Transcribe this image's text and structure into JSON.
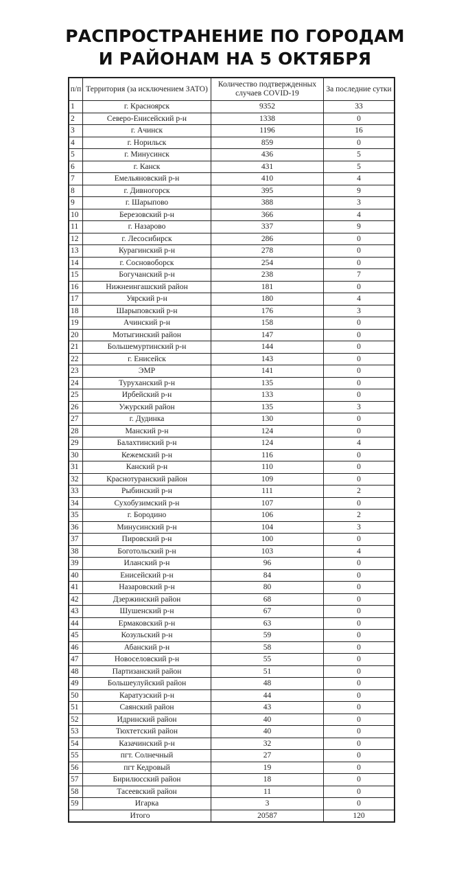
{
  "title": {
    "line1": "РАСПРОСТРАНЕНИЕ ПО ГОРОДАМ",
    "line2": "И РАЙОНАМ НА 5 ОКТЯБРЯ"
  },
  "table": {
    "headers": [
      "п/п",
      "Территория (за исключением ЗАТО)",
      "Количество подтвержденных случаев COVID-19",
      "За последние сутки"
    ],
    "rows": [
      [
        "1",
        "г. Красноярск",
        "9352",
        "33"
      ],
      [
        "2",
        "Северо-Енисейский р-н",
        "1338",
        "0"
      ],
      [
        "3",
        "г. Ачинск",
        "1196",
        "16"
      ],
      [
        "4",
        "г. Норильск",
        "859",
        "0"
      ],
      [
        "5",
        "г. Минусинск",
        "436",
        "5"
      ],
      [
        "6",
        "г. Канск",
        "431",
        "5"
      ],
      [
        "7",
        "Емельяновский р-н",
        "410",
        "4"
      ],
      [
        "8",
        "г. Дивногорск",
        "395",
        "9"
      ],
      [
        "9",
        "г. Шарыпово",
        "388",
        "3"
      ],
      [
        "10",
        "Березовский р-н",
        "366",
        "4"
      ],
      [
        "11",
        "г. Назарово",
        "337",
        "9"
      ],
      [
        "12",
        "г. Лесосибирск",
        "286",
        "0"
      ],
      [
        "13",
        "Курагинский р-н",
        "278",
        "0"
      ],
      [
        "14",
        "г. Сосновоборск",
        "254",
        "0"
      ],
      [
        "15",
        "Богучанский р-н",
        "238",
        "7"
      ],
      [
        "16",
        "Нижнеингашский район",
        "181",
        "0"
      ],
      [
        "17",
        "Уярский р-н",
        "180",
        "4"
      ],
      [
        "18",
        "Шарыповский р-н",
        "176",
        "3"
      ],
      [
        "19",
        "Ачинский р-н",
        "158",
        "0"
      ],
      [
        "20",
        "Мотыгинский район",
        "147",
        "0"
      ],
      [
        "21",
        "Большемуртинский р-н",
        "144",
        "0"
      ],
      [
        "22",
        "г. Енисейск",
        "143",
        "0"
      ],
      [
        "23",
        "ЭМР",
        "141",
        "0"
      ],
      [
        "24",
        "Туруханский р-н",
        "135",
        "0"
      ],
      [
        "25",
        "Ирбейский р-н",
        "133",
        "0"
      ],
      [
        "26",
        "Ужурский район",
        "135",
        "3"
      ],
      [
        "27",
        "г. Дудинка",
        "130",
        "0"
      ],
      [
        "28",
        "Манский р-н",
        "124",
        "0"
      ],
      [
        "29",
        "Балахтинский р-н",
        "124",
        "4"
      ],
      [
        "30",
        "Кежемский р-н",
        "116",
        "0"
      ],
      [
        "31",
        "Канский р-н",
        "110",
        "0"
      ],
      [
        "32",
        "Краснотуранский район",
        "109",
        "0"
      ],
      [
        "33",
        "Рыбинский р-н",
        "111",
        "2"
      ],
      [
        "34",
        "Сухобузимский р-н",
        "107",
        "0"
      ],
      [
        "35",
        "г. Бородино",
        "106",
        "2"
      ],
      [
        "36",
        "Минусинский р-н",
        "104",
        "3"
      ],
      [
        "37",
        "Пировский р-н",
        "100",
        "0"
      ],
      [
        "38",
        "Боготольский р-н",
        "103",
        "4"
      ],
      [
        "39",
        "Иланский р-н",
        "96",
        "0"
      ],
      [
        "40",
        "Енисейский р-н",
        "84",
        "0"
      ],
      [
        "41",
        "Назаровский р-н",
        "80",
        "0"
      ],
      [
        "42",
        "Дзержинский район",
        "68",
        "0"
      ],
      [
        "43",
        "Шушенский р-н",
        "67",
        "0"
      ],
      [
        "44",
        "Ермаковский р-н",
        "63",
        "0"
      ],
      [
        "45",
        "Козульский р-н",
        "59",
        "0"
      ],
      [
        "46",
        "Абанский р-н",
        "58",
        "0"
      ],
      [
        "47",
        "Новоселовский р-н",
        "55",
        "0"
      ],
      [
        "48",
        "Партизанский район",
        "51",
        "0"
      ],
      [
        "49",
        "Большеулуйский район",
        "48",
        "0"
      ],
      [
        "50",
        "Каратузский р-н",
        "44",
        "0"
      ],
      [
        "51",
        "Саянский район",
        "43",
        "0"
      ],
      [
        "52",
        "Идринский район",
        "40",
        "0"
      ],
      [
        "53",
        "Тюхтетский район",
        "40",
        "0"
      ],
      [
        "54",
        "Казачинский р-н",
        "32",
        "0"
      ],
      [
        "55",
        "пгт. Солнечный",
        "27",
        "0"
      ],
      [
        "56",
        "пгт Кедровый",
        "19",
        "0"
      ],
      [
        "57",
        "Бирилюсский район",
        "18",
        "0"
      ],
      [
        "58",
        "Тасеевский район",
        "11",
        "0"
      ],
      [
        "59",
        "Игарка",
        "3",
        "0"
      ]
    ],
    "total": {
      "label": "Итого",
      "cases": "20587",
      "last_day": "120"
    }
  }
}
